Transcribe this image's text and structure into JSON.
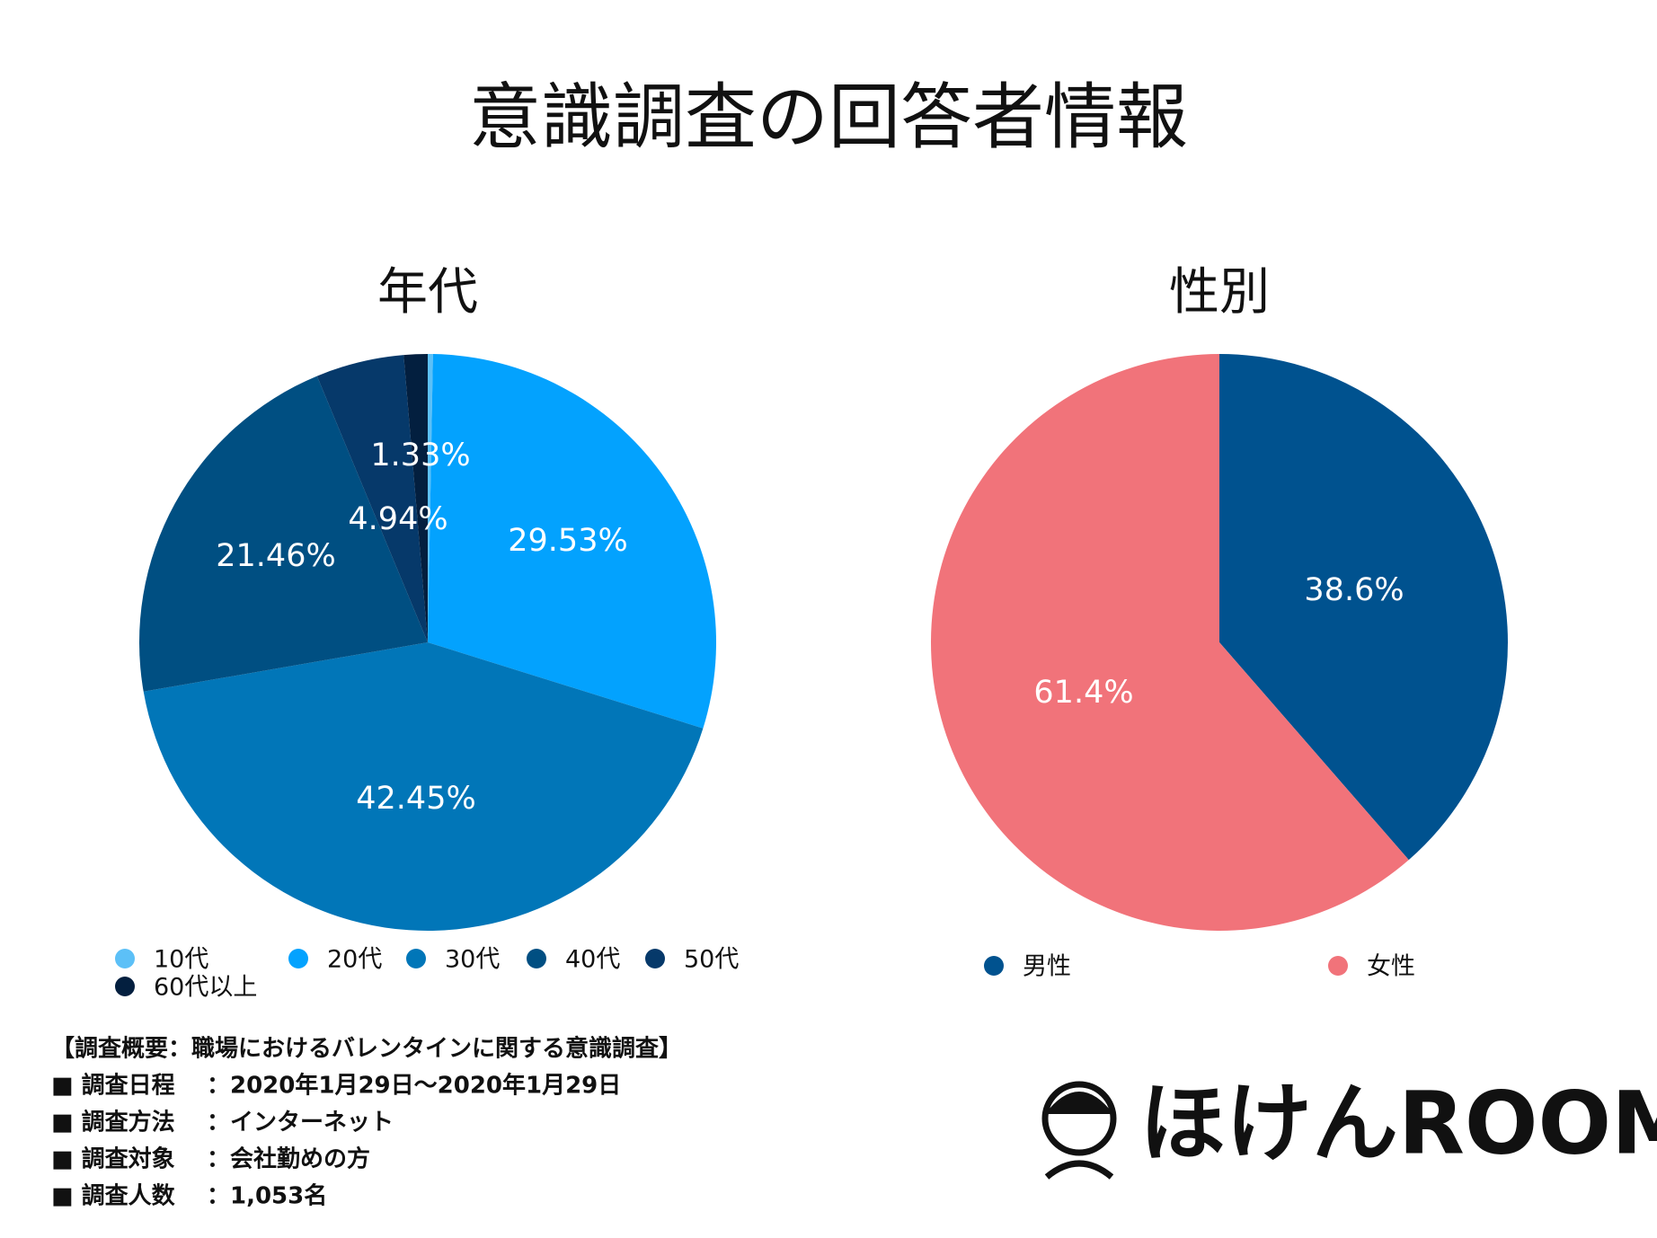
{
  "title": "意識調査の回答者情報",
  "chart_data": [
    {
      "type": "pie",
      "title": "年代",
      "categories": [
        "10代",
        "20代",
        "30代",
        "40代",
        "50代",
        "60代以上"
      ],
      "values": [
        0.29,
        29.53,
        42.45,
        21.46,
        4.94,
        1.33
      ],
      "value_labels": [
        null,
        "29.53%",
        "42.45%",
        "21.46%",
        "4.94%",
        "1.33%"
      ],
      "colors": [
        "#5cc0f7",
        "#03a2fe",
        "#0176b8",
        "#004f82",
        "#06396a",
        "#031f3f"
      ]
    },
    {
      "type": "pie",
      "title": "性別",
      "categories": [
        "男性",
        "女性"
      ],
      "values": [
        38.6,
        61.4
      ],
      "value_labels": [
        "38.6%",
        "61.4%"
      ],
      "colors": [
        "#00528f",
        "#f1737a"
      ]
    }
  ],
  "survey": {
    "heading": "【調査概要：職場におけるバレンタインに関する意識調査】",
    "rows": [
      [
        "■ 調査日程",
        "：2020年1月29日〜2020年1月29日"
      ],
      [
        "■ 調査方法",
        "：インターネット"
      ],
      [
        "■ 調査対象",
        "：会社勤めの方"
      ],
      [
        "■ 調査人数",
        "：1,053名"
      ]
    ]
  },
  "logo": "ほけんROOM"
}
